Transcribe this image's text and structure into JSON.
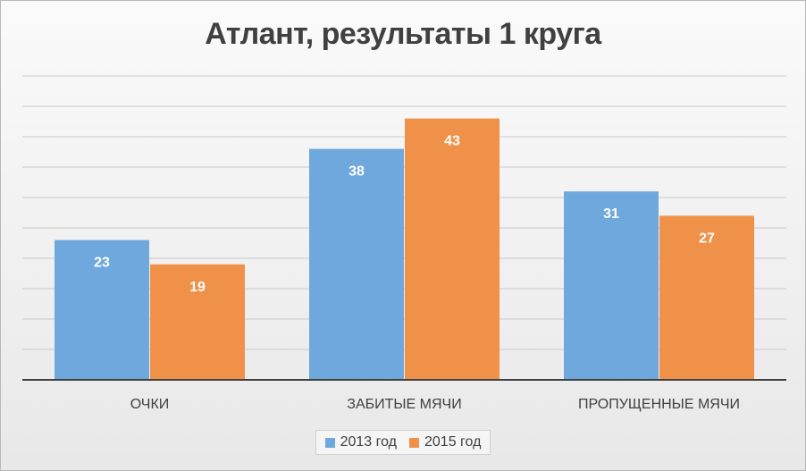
{
  "chart_data": {
    "type": "bar",
    "title": "Атлант, результаты 1 круга",
    "categories": [
      "ОЧКИ",
      "ЗАБИТЫЕ МЯЧИ",
      "ПРОПУЩЕННЫЕ МЯЧИ"
    ],
    "series": [
      {
        "name": "2013 год",
        "values": [
          23,
          38,
          31
        ],
        "color": "#6fa8dc"
      },
      {
        "name": "2015 год",
        "values": [
          19,
          43,
          27
        ],
        "color": "#f0914a"
      }
    ],
    "ylim": [
      0,
      50
    ],
    "grid": true,
    "legend": "bottom",
    "data_labels": true
  }
}
